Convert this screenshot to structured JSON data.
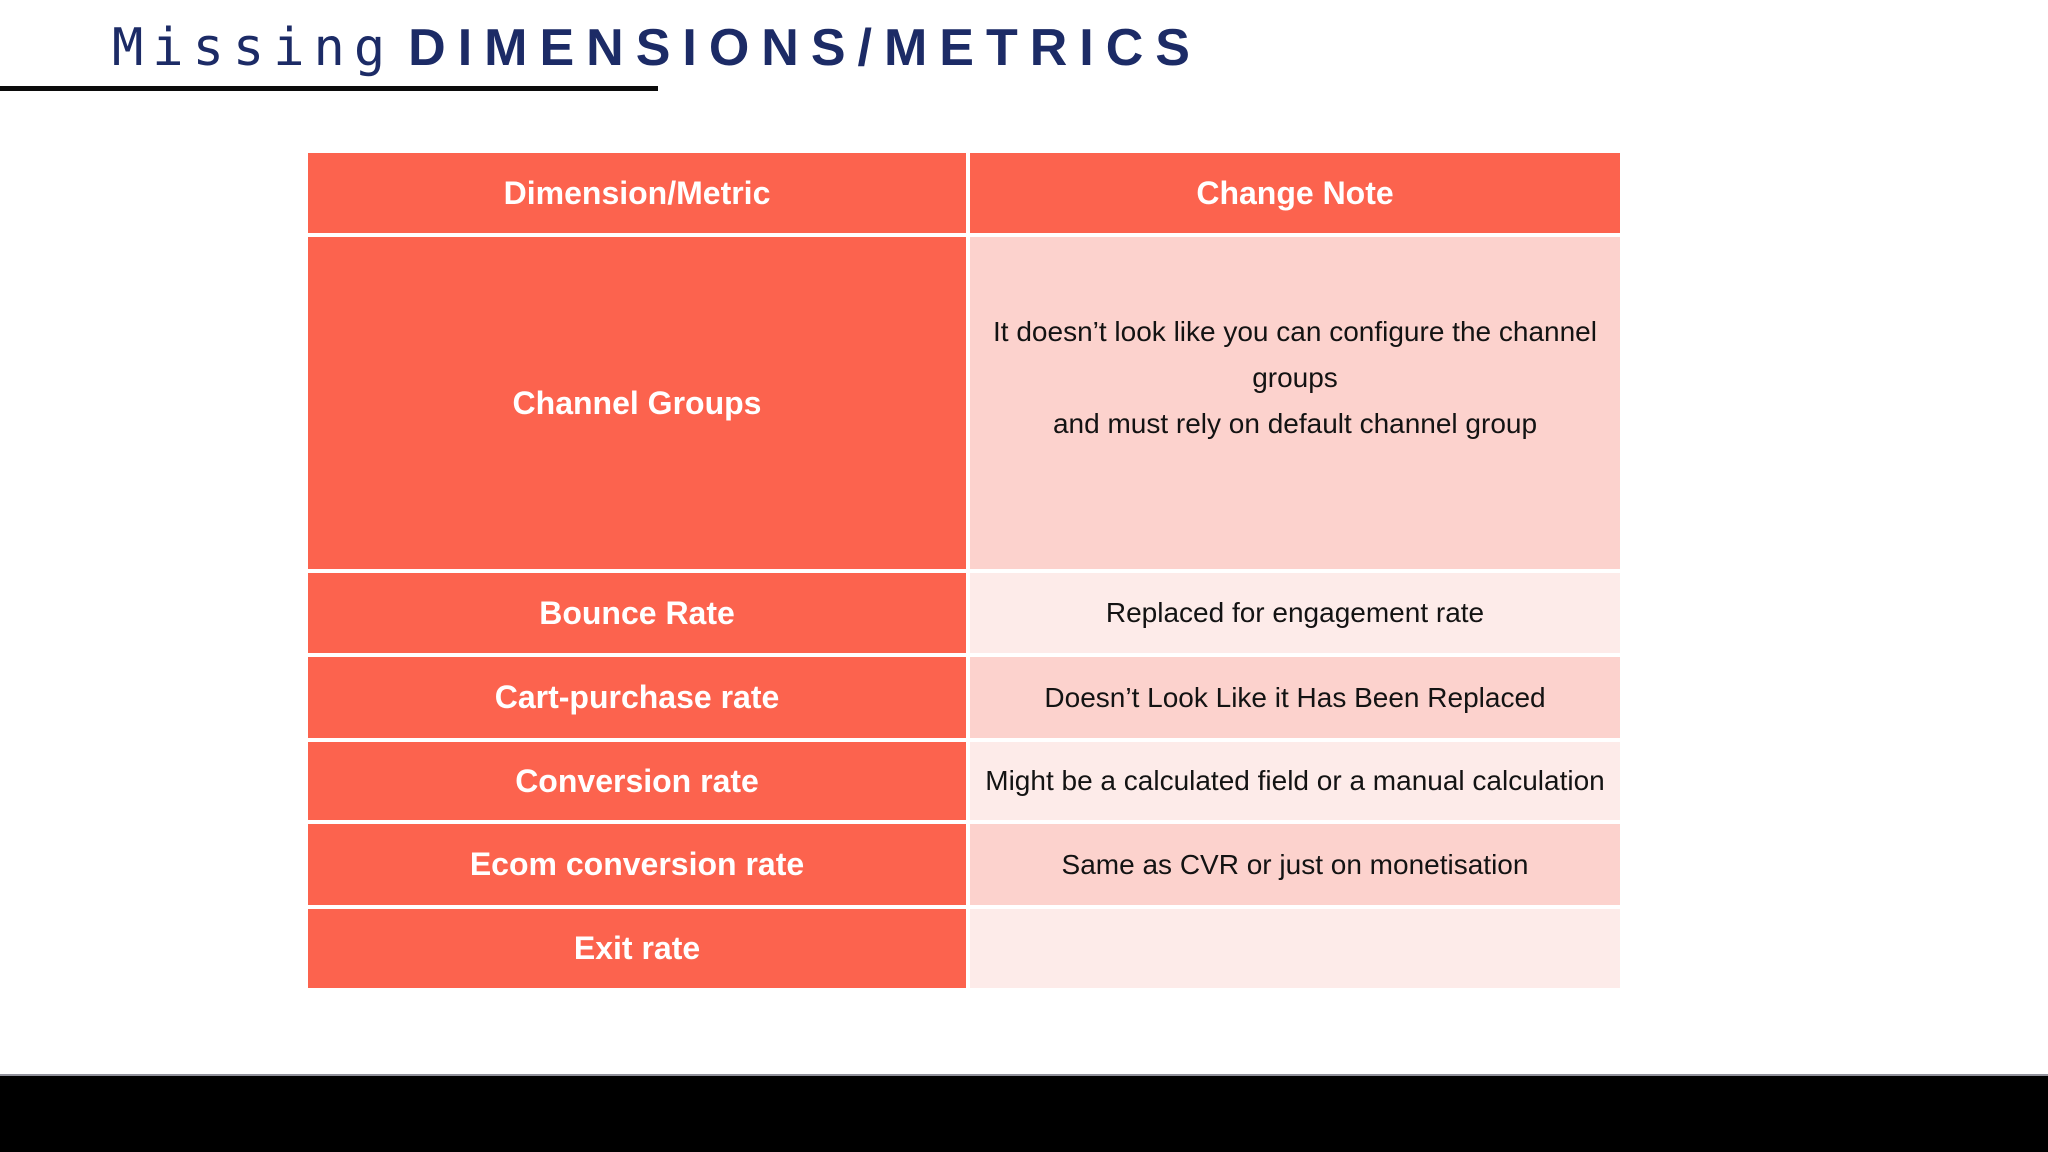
{
  "title": {
    "prefix": "Missing",
    "emphasis": "DIMENSIONS/METRICS"
  },
  "table": {
    "headers": {
      "col1": "Dimension/Metric",
      "col2": "Change Note"
    },
    "rows": [
      {
        "metric": "Channel Groups",
        "note_lines": [
          "It doesn’t look like you can configure the channel groups",
          "and must rely on default channel group"
        ]
      },
      {
        "metric": "Bounce Rate",
        "note_lines": [
          "Replaced for engagement rate"
        ]
      },
      {
        "metric": "Cart-purchase rate",
        "note_lines": [
          "Doesn’t Look Like it Has Been Replaced"
        ]
      },
      {
        "metric": "Conversion rate",
        "note_lines": [
          "Might be a calculated field or a manual calculation"
        ]
      },
      {
        "metric": "Ecom conversion rate",
        "note_lines": [
          "Same as CVR or just on monetisation"
        ]
      },
      {
        "metric": "Exit rate",
        "note_lines": []
      }
    ]
  },
  "colors": {
    "accent_red": "#FC634E",
    "pink_dark": "#FCD2CD",
    "pink_light": "#FDEBE9",
    "title_navy": "#1C2B66",
    "footer_black": "#000000"
  }
}
